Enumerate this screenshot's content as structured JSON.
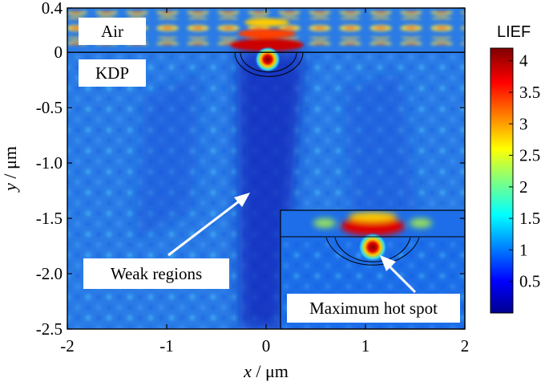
{
  "chart_data": {
    "type": "heatmap",
    "xlabel_var": "x",
    "xlabel_unit": " / μm",
    "ylabel_var": "y",
    "ylabel_unit": " / μm",
    "xlim": [
      -2,
      2
    ],
    "ylim": [
      -2.5,
      0.4
    ],
    "x_ticks": [
      {
        "v": -2,
        "label": "-2"
      },
      {
        "v": -1,
        "label": "-1"
      },
      {
        "v": 0,
        "label": "0"
      },
      {
        "v": 1,
        "label": "1"
      },
      {
        "v": 2,
        "label": "2"
      }
    ],
    "y_ticks": [
      {
        "v": 0.4,
        "label": "0.4"
      },
      {
        "v": 0,
        "label": "0"
      },
      {
        "v": -0.5,
        "label": "-0.5"
      },
      {
        "v": -1.0,
        "label": "-1.0"
      },
      {
        "v": -1.5,
        "label": "-1.5"
      },
      {
        "v": -2.0,
        "label": "-2.0"
      },
      {
        "v": -2.5,
        "label": "-2.5"
      }
    ],
    "colorbar": {
      "title": "LIEF",
      "range": [
        0,
        4.2
      ],
      "ticks": [
        {
          "v": 0.5,
          "label": "0.5"
        },
        {
          "v": 1,
          "label": "1"
        },
        {
          "v": 1.5,
          "label": "1.5"
        },
        {
          "v": 2,
          "label": "2"
        },
        {
          "v": 2.5,
          "label": "2.5"
        },
        {
          "v": 3,
          "label": "3"
        },
        {
          "v": 3.5,
          "label": "3.5"
        },
        {
          "v": 4,
          "label": "4"
        }
      ]
    },
    "regions": [
      {
        "name": "air",
        "label": "Air"
      },
      {
        "name": "kdp",
        "label": "KDP"
      }
    ],
    "interface_y": 0,
    "annotations": [
      {
        "name": "weak-regions",
        "text": "Weak regions"
      },
      {
        "name": "maximum-hot-spot",
        "text": "Maximum hot spot"
      }
    ],
    "hot_spot": {
      "x": 0,
      "y": -0.07,
      "value": 4.2
    }
  }
}
